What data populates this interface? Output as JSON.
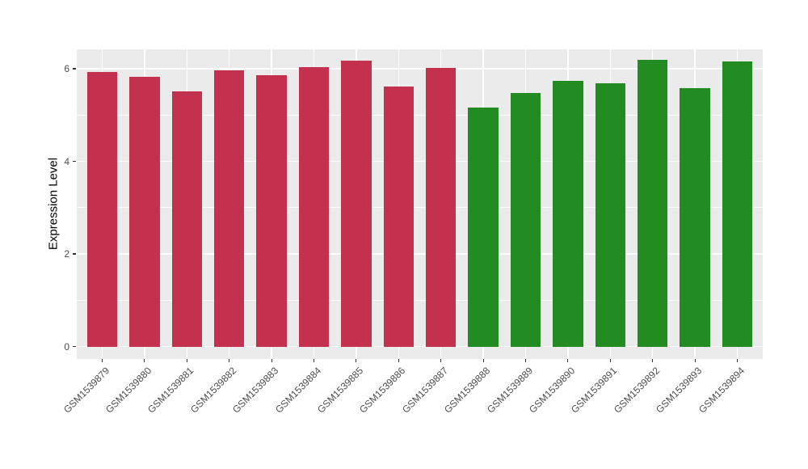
{
  "chart_data": {
    "type": "bar",
    "title": "",
    "xlabel": "",
    "ylabel": "Expression Level",
    "categories": [
      "GSM1539879",
      "GSM1539880",
      "GSM1539881",
      "GSM1539882",
      "GSM1539883",
      "GSM1539884",
      "GSM1539885",
      "GSM1539886",
      "GSM1539887",
      "GSM1539888",
      "GSM1539889",
      "GSM1539890",
      "GSM1539891",
      "GSM1539892",
      "GSM1539893",
      "GSM1539894"
    ],
    "values": [
      5.93,
      5.83,
      5.52,
      5.97,
      5.86,
      6.04,
      6.17,
      5.62,
      6.02,
      5.16,
      5.48,
      5.74,
      5.69,
      6.2,
      5.58,
      6.16
    ],
    "groups": [
      "crimson",
      "crimson",
      "crimson",
      "crimson",
      "crimson",
      "crimson",
      "crimson",
      "crimson",
      "crimson",
      "forestgreen",
      "forestgreen",
      "forestgreen",
      "forestgreen",
      "forestgreen",
      "forestgreen",
      "forestgreen"
    ],
    "group_colors": {
      "crimson": "#C3314E",
      "forestgreen": "#228B22"
    },
    "yticks": [
      0,
      2,
      4,
      6
    ],
    "minor_yticks": [
      1,
      3,
      5
    ],
    "ylim": [
      -0.27,
      6.42
    ],
    "legend": "none",
    "grid": "on",
    "panel_background": "#EBEBEB",
    "grid_color": "#FFFFFF",
    "tick_color": "#333333"
  }
}
